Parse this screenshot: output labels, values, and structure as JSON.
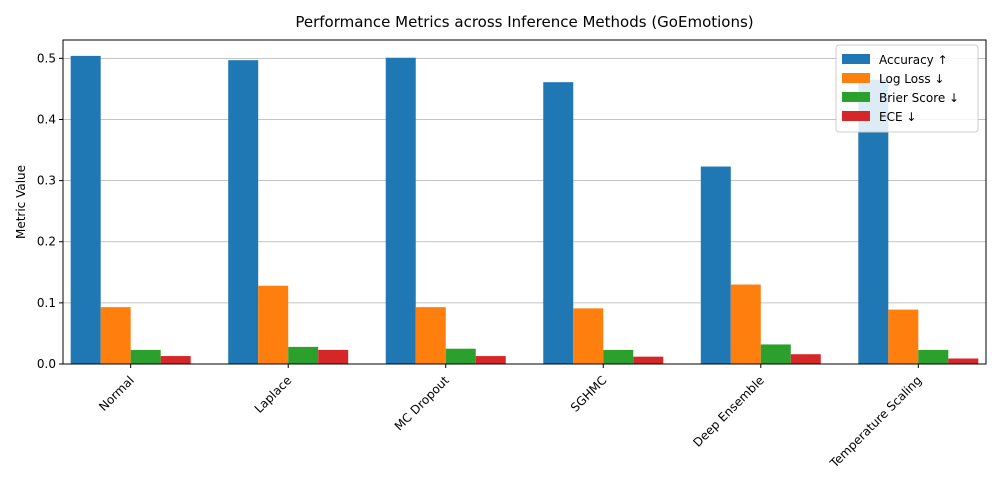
{
  "chart_data": {
    "type": "bar",
    "title": "Performance Metrics across Inference Methods (GoEmotions)",
    "xlabel": "",
    "ylabel": "Metric Value",
    "categories": [
      "Normal",
      "Laplace",
      "MC Dropout",
      "SGHMC",
      "Deep Ensemble",
      "Temperature Scaling"
    ],
    "series": [
      {
        "name": "Accuracy ↑",
        "color": "#1f77b4",
        "values": [
          0.504,
          0.497,
          0.501,
          0.461,
          0.323,
          0.465
        ]
      },
      {
        "name": "Log Loss ↓",
        "color": "#ff7f0e",
        "values": [
          0.093,
          0.128,
          0.093,
          0.091,
          0.13,
          0.089
        ]
      },
      {
        "name": "Brier Score ↓",
        "color": "#2ca02c",
        "values": [
          0.023,
          0.028,
          0.025,
          0.023,
          0.032,
          0.023
        ]
      },
      {
        "name": "ECE ↓",
        "color": "#d62728",
        "values": [
          0.013,
          0.023,
          0.013,
          0.012,
          0.016,
          0.009
        ]
      }
    ],
    "ylim": [
      0,
      0.53
    ],
    "yticks": [
      "0.0",
      "0.1",
      "0.2",
      "0.3",
      "0.4",
      "0.5"
    ],
    "grid": "horizontal",
    "legend_position": "top-right"
  }
}
